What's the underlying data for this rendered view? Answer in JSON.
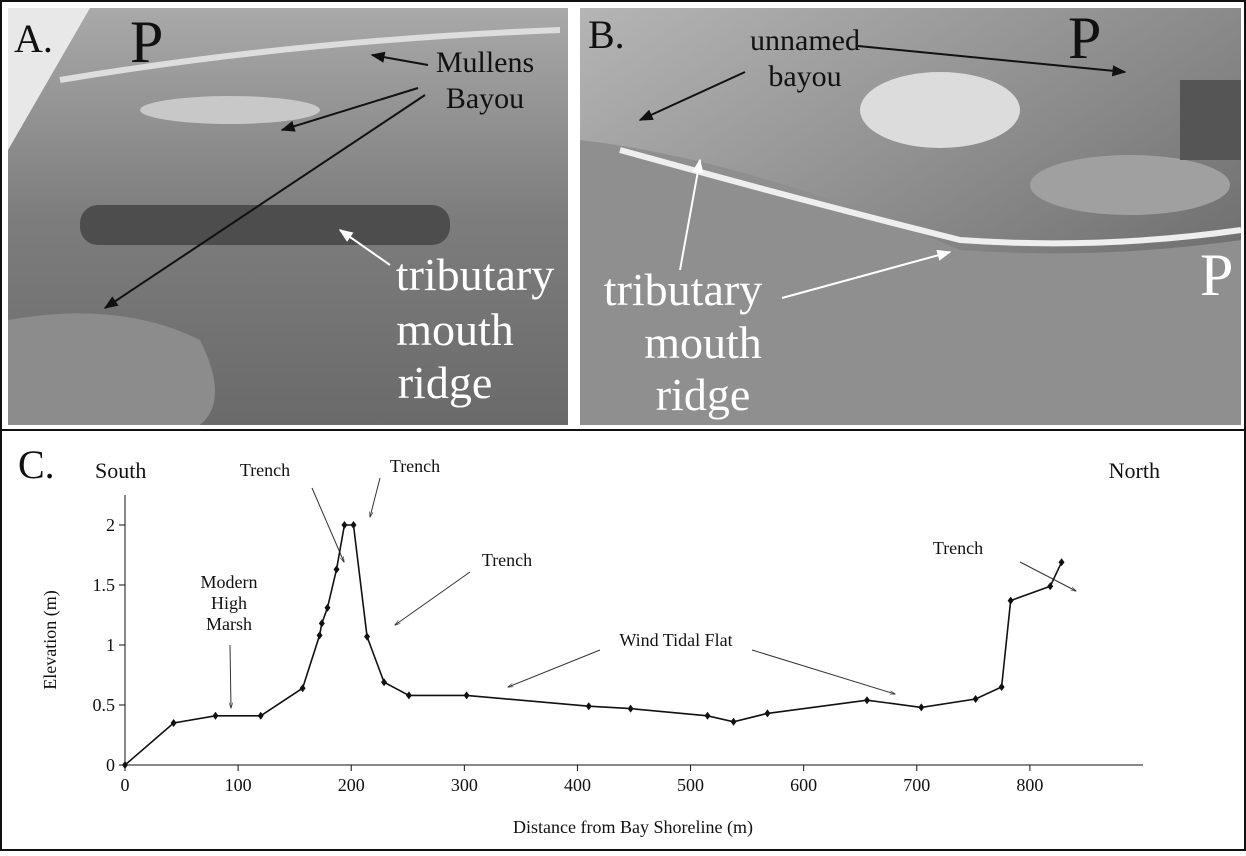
{
  "photos": [
    {
      "label": "A.",
      "texts": [
        "P",
        "Mullens",
        "Bayou",
        "tributary",
        "mouth",
        "ridge"
      ]
    },
    {
      "label": "B.",
      "texts": [
        "unnamed",
        "bayou",
        "P",
        "tributary",
        "mouth",
        "ridge",
        "P"
      ]
    }
  ],
  "chart_data": {
    "type": "line",
    "panel_label": "C.",
    "left_label": "South",
    "right_label": "North",
    "x_label": "Distance from Bay Shoreline (m)",
    "y_label": "Elevation (m)",
    "x": [
      0,
      43,
      80,
      120,
      157,
      172,
      174,
      179,
      187,
      194,
      202,
      214,
      229,
      251,
      302,
      410,
      447,
      515,
      538,
      568,
      656,
      704,
      752,
      775,
      783,
      818,
      828
    ],
    "series": [
      {
        "color": "#111111",
        "values": [
          0,
          0.35,
          0.41,
          0.41,
          0.64,
          1.08,
          1.18,
          1.31,
          1.63,
          2.0,
          2.0,
          1.07,
          0.69,
          0.58,
          0.58,
          0.49,
          0.47,
          0.41,
          0.36,
          0.43,
          0.54,
          0.48,
          0.55,
          0.65,
          1.37,
          1.49,
          1.69
        ]
      }
    ],
    "xlim": [
      0,
      900
    ],
    "ylim": [
      0,
      2.25
    ],
    "xticks": [
      0,
      100,
      200,
      300,
      400,
      500,
      600,
      700,
      800
    ],
    "yticks": [
      0,
      0.5,
      1,
      1.5,
      2
    ],
    "annotations": [
      [
        "Trench"
      ],
      [
        "Trench"
      ],
      [
        "Trench"
      ],
      [
        "Trench"
      ],
      [
        "Wind Tidal Flat"
      ],
      [
        "Modern",
        "High",
        "Marsh"
      ]
    ]
  }
}
